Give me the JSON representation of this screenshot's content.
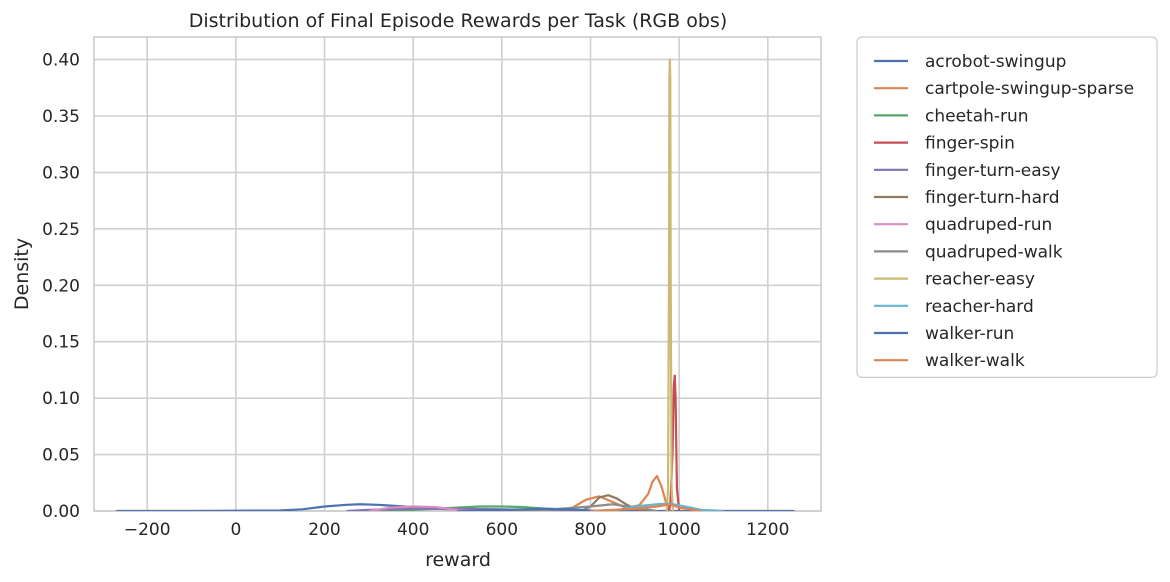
{
  "chart_data": {
    "type": "line",
    "title": "Distribution of Final Episode Rewards per Task (RGB obs)",
    "xlabel": "reward",
    "ylabel": "Density",
    "xlim": [
      -320,
      1320
    ],
    "ylim": [
      0,
      0.42
    ],
    "xticks": [
      -200,
      0,
      200,
      400,
      600,
      800,
      1000,
      1200
    ],
    "xtick_labels": [
      "−200",
      "0",
      "200",
      "400",
      "600",
      "800",
      "1000",
      "1200"
    ],
    "yticks": [
      0,
      0.05,
      0.1,
      0.15,
      0.2,
      0.25,
      0.3,
      0.35,
      0.4
    ],
    "ytick_labels": [
      "0.00",
      "0.05",
      "0.10",
      "0.15",
      "0.20",
      "0.25",
      "0.30",
      "0.35",
      "0.40"
    ],
    "grid": true,
    "legend_position": "outside-right",
    "series": [
      {
        "name": "acrobot-swingup",
        "color": "#4C72B0",
        "x": [
          -270,
          -100,
          100,
          150,
          200,
          250,
          280,
          320,
          380,
          450,
          550,
          700,
          1000,
          1260
        ],
        "y": [
          0,
          0,
          0.0005,
          0.0015,
          0.004,
          0.0055,
          0.006,
          0.0055,
          0.004,
          0.002,
          0.0008,
          0.0002,
          0,
          0
        ]
      },
      {
        "name": "cartpole-swingup-sparse",
        "color": "#DD8452",
        "x": [
          730,
          760,
          790,
          820,
          850,
          880,
          910,
          930,
          940,
          950,
          960,
          970,
          980
        ],
        "y": [
          0,
          0.003,
          0.01,
          0.013,
          0.008,
          0.003,
          0.005,
          0.015,
          0.026,
          0.031,
          0.022,
          0.008,
          0
        ]
      },
      {
        "name": "cheetah-run",
        "color": "#55A868",
        "x": [
          300,
          400,
          500,
          550,
          600,
          650,
          700,
          750,
          800
        ],
        "y": [
          0,
          0.001,
          0.003,
          0.004,
          0.004,
          0.0035,
          0.002,
          0.001,
          0
        ]
      },
      {
        "name": "finger-spin",
        "color": "#C44E52",
        "x": [
          975,
          980,
          985,
          988,
          990,
          992,
          995,
          1000
        ],
        "y": [
          0,
          0.005,
          0.05,
          0.11,
          0.12,
          0.1,
          0.02,
          0
        ]
      },
      {
        "name": "finger-turn-easy",
        "color": "#8172B3",
        "x": [
          250,
          300,
          400,
          500,
          600,
          700,
          800
        ],
        "y": [
          0,
          0.001,
          0.002,
          0.002,
          0.0015,
          0.0008,
          0
        ]
      },
      {
        "name": "finger-turn-hard",
        "color": "#937860",
        "x": [
          780,
          800,
          820,
          840,
          860,
          880,
          900,
          920
        ],
        "y": [
          0,
          0.004,
          0.012,
          0.014,
          0.011,
          0.006,
          0.002,
          0
        ]
      },
      {
        "name": "quadruped-run",
        "color": "#DA8BC3",
        "x": [
          300,
          350,
          400,
          450,
          500,
          550
        ],
        "y": [
          0,
          0.003,
          0.004,
          0.0035,
          0.001,
          0
        ]
      },
      {
        "name": "quadruped-walk",
        "color": "#8C8C8C",
        "x": [
          600,
          700,
          800,
          850,
          900,
          950
        ],
        "y": [
          0,
          0.001,
          0.004,
          0.006,
          0.003,
          0
        ]
      },
      {
        "name": "reacher-easy",
        "color": "#CCB974",
        "x": [
          972,
          975,
          977,
          978,
          979,
          980,
          981,
          983,
          986
        ],
        "y": [
          0,
          0.02,
          0.2,
          0.38,
          0.4,
          0.38,
          0.2,
          0.02,
          0
        ]
      },
      {
        "name": "reacher-hard",
        "color": "#64B5CD",
        "x": [
          850,
          900,
          950,
          980,
          1000,
          1050,
          1100
        ],
        "y": [
          0,
          0.004,
          0.006,
          0.0065,
          0.005,
          0.001,
          0
        ]
      },
      {
        "name": "walker-run",
        "color": "#4C72B0",
        "x": [
          500,
          600,
          700,
          750,
          800,
          850
        ],
        "y": [
          0,
          0.001,
          0.002,
          0.0015,
          0.0005,
          0
        ]
      },
      {
        "name": "walker-walk",
        "color": "#DD8452",
        "x": [
          800,
          900,
          950,
          980,
          1000,
          1050
        ],
        "y": [
          0,
          0.002,
          0.004,
          0.006,
          0.003,
          0
        ]
      }
    ]
  }
}
